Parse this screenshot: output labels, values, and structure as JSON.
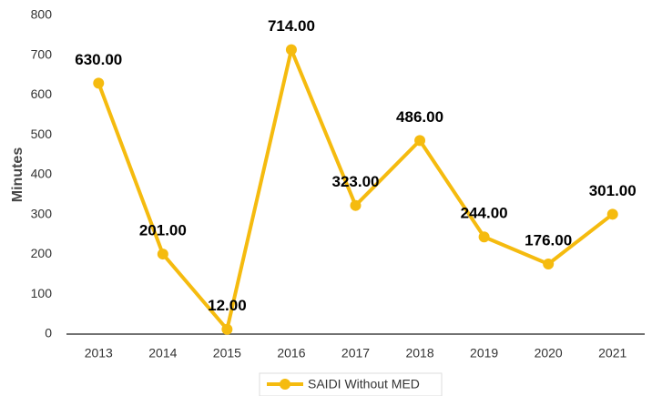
{
  "chart_data": {
    "type": "line",
    "y_label": "Minutes",
    "categories": [
      "2013",
      "2014",
      "2015",
      "2016",
      "2017",
      "2018",
      "2019",
      "2020",
      "2021"
    ],
    "series": [
      {
        "name": "SAIDI Without MED",
        "color": "#f5bb0f",
        "values": [
          630,
          201,
          12,
          714,
          323,
          486,
          244,
          176,
          301
        ],
        "value_labels": [
          "630.00",
          "201.00",
          "12.00",
          "714.00",
          "323.00",
          "486.00",
          "244.00",
          "176.00",
          "301.00"
        ]
      }
    ],
    "ylim": [
      0,
      800
    ],
    "yticks": [
      0,
      100,
      200,
      300,
      400,
      500,
      600,
      700,
      800
    ],
    "grid": false,
    "legend": "bottom"
  }
}
